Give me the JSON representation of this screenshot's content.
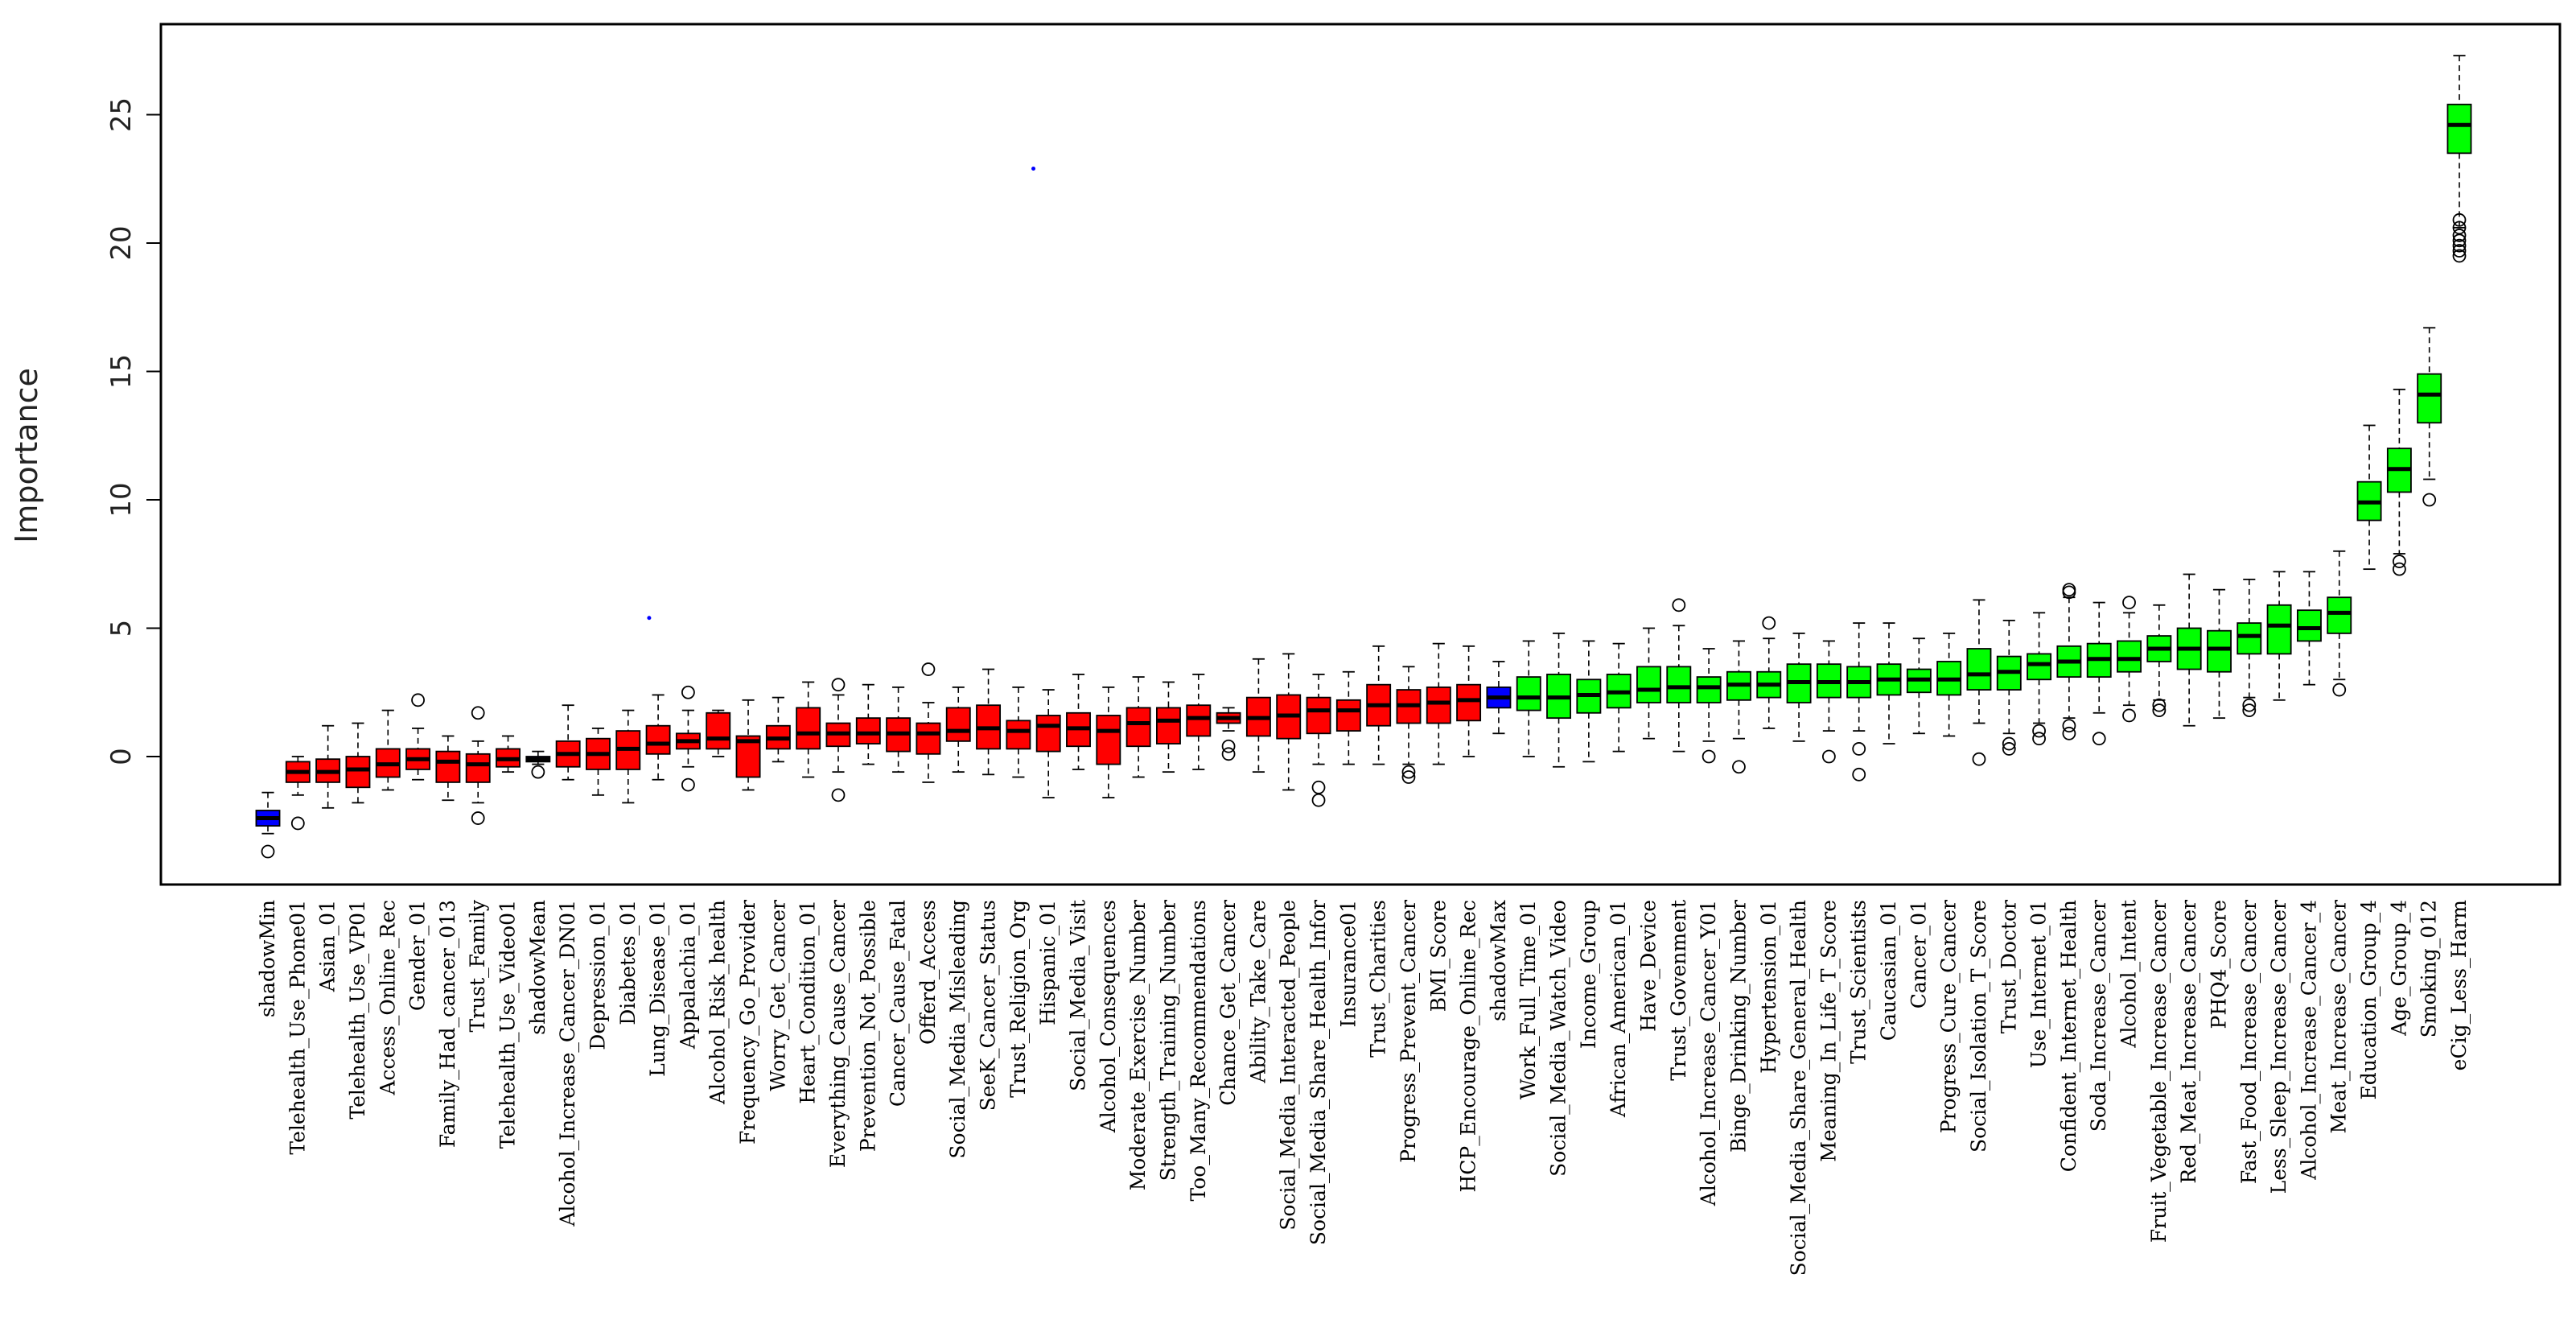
{
  "chart_data": {
    "type": "boxplot",
    "ylabel": "Importance",
    "xlabel": "",
    "ylim": [
      -5,
      28
    ],
    "yticks": [
      0,
      5,
      10,
      15,
      20,
      25
    ],
    "colors": {
      "shadow": "#0000ff",
      "rejected": "#ff0000",
      "confirmed": "#00ff00"
    },
    "boxes": [
      {
        "label": "shadowMin",
        "group": "shadow",
        "min": -3.0,
        "q1": -2.7,
        "median": -2.4,
        "q3": -2.1,
        "max": -1.4,
        "outliers": [
          -3.7
        ]
      },
      {
        "label": "Telehealth_Use_Phone01",
        "group": "rejected",
        "min": -1.5,
        "q1": -1.0,
        "median": -0.6,
        "q3": -0.2,
        "max": 0.0,
        "outliers": [
          -2.6
        ]
      },
      {
        "label": "Asian_01",
        "group": "rejected",
        "min": -2.0,
        "q1": -1.0,
        "median": -0.6,
        "q3": -0.1,
        "max": 1.2,
        "outliers": []
      },
      {
        "label": "Telehealth_Use_VP01",
        "group": "rejected",
        "min": -1.8,
        "q1": -1.2,
        "median": -0.5,
        "q3": 0.0,
        "max": 1.3,
        "outliers": []
      },
      {
        "label": "Access_Online_Rec",
        "group": "rejected",
        "min": -1.3,
        "q1": -0.8,
        "median": -0.3,
        "q3": 0.3,
        "max": 1.8,
        "outliers": []
      },
      {
        "label": "Gender_01",
        "group": "rejected",
        "min": -0.9,
        "q1": -0.5,
        "median": -0.1,
        "q3": 0.3,
        "max": 1.1,
        "outliers": [
          2.2
        ]
      },
      {
        "label": "Family_Had_cancer_013",
        "group": "rejected",
        "min": -1.7,
        "q1": -1.0,
        "median": -0.2,
        "q3": 0.2,
        "max": 0.8,
        "outliers": []
      },
      {
        "label": "Trust_Family",
        "group": "rejected",
        "min": -1.8,
        "q1": -1.0,
        "median": -0.3,
        "q3": 0.1,
        "max": 0.6,
        "outliers": [
          1.7,
          -2.4
        ]
      },
      {
        "label": "Telehealth_Use_Video01",
        "group": "rejected",
        "min": -0.6,
        "q1": -0.4,
        "median": -0.1,
        "q3": 0.3,
        "max": 0.8,
        "outliers": []
      },
      {
        "label": "shadowMean",
        "group": "shadow",
        "min": -0.3,
        "q1": -0.2,
        "median": -0.1,
        "q3": 0.0,
        "max": 0.2,
        "outliers": [
          -0.6
        ]
      },
      {
        "label": "Alcohol_Increase_Cancer_DN01",
        "group": "rejected",
        "min": -0.9,
        "q1": -0.4,
        "median": 0.1,
        "q3": 0.6,
        "max": 2.0,
        "outliers": []
      },
      {
        "label": "Depression_01",
        "group": "rejected",
        "min": -1.5,
        "q1": -0.5,
        "median": 0.1,
        "q3": 0.7,
        "max": 1.1,
        "outliers": []
      },
      {
        "label": "Diabetes_01",
        "group": "rejected",
        "min": -1.8,
        "q1": -0.5,
        "median": 0.3,
        "q3": 1.0,
        "max": 1.8,
        "outliers": []
      },
      {
        "label": "Lung_Disease_01",
        "group": "rejected",
        "min": -0.9,
        "q1": 0.1,
        "median": 0.5,
        "q3": 1.2,
        "max": 2.4,
        "outliers": []
      },
      {
        "label": "Appalachia_01",
        "group": "rejected",
        "min": -0.4,
        "q1": 0.3,
        "median": 0.6,
        "q3": 0.9,
        "max": 1.8,
        "outliers": [
          2.5,
          -1.1
        ]
      },
      {
        "label": "Alcohol_Risk_health",
        "group": "rejected",
        "min": 0.0,
        "q1": 0.3,
        "median": 0.7,
        "q3": 1.7,
        "max": 1.8,
        "outliers": []
      },
      {
        "label": "Frequency_Go_Provider",
        "group": "rejected",
        "min": -1.3,
        "q1": -0.8,
        "median": 0.6,
        "q3": 0.8,
        "max": 2.2,
        "outliers": []
      },
      {
        "label": "Worry_Get_Cancer",
        "group": "rejected",
        "min": -0.2,
        "q1": 0.3,
        "median": 0.7,
        "q3": 1.2,
        "max": 2.3,
        "outliers": []
      },
      {
        "label": "Heart_Condition_01",
        "group": "rejected",
        "min": -0.8,
        "q1": 0.3,
        "median": 0.9,
        "q3": 1.9,
        "max": 2.9,
        "outliers": []
      },
      {
        "label": "Everything_Cause_Cancer",
        "group": "rejected",
        "min": -0.6,
        "q1": 0.4,
        "median": 0.9,
        "q3": 1.3,
        "max": 2.4,
        "outliers": [
          2.8,
          -1.5
        ]
      },
      {
        "label": "Prevention_Not_Possible",
        "group": "rejected",
        "min": -0.3,
        "q1": 0.5,
        "median": 0.9,
        "q3": 1.5,
        "max": 2.8,
        "outliers": []
      },
      {
        "label": "Cancer_Cause_Fatal",
        "group": "rejected",
        "min": -0.6,
        "q1": 0.2,
        "median": 0.9,
        "q3": 1.5,
        "max": 2.7,
        "outliers": []
      },
      {
        "label": "Offerd_Access",
        "group": "rejected",
        "min": -1.0,
        "q1": 0.1,
        "median": 0.9,
        "q3": 1.3,
        "max": 2.1,
        "outliers": [
          3.4
        ]
      },
      {
        "label": "Social_Media_Misleading",
        "group": "rejected",
        "min": -0.6,
        "q1": 0.6,
        "median": 1.0,
        "q3": 1.9,
        "max": 2.7,
        "outliers": []
      },
      {
        "label": "SeeK_Cancer_Status",
        "group": "rejected",
        "min": -0.7,
        "q1": 0.3,
        "median": 1.1,
        "q3": 2.0,
        "max": 3.4,
        "outliers": []
      },
      {
        "label": "Trust_Religion_Org",
        "group": "rejected",
        "min": -0.8,
        "q1": 0.3,
        "median": 1.0,
        "q3": 1.4,
        "max": 2.7,
        "outliers": []
      },
      {
        "label": "Hispanic_01",
        "group": "rejected",
        "min": -1.6,
        "q1": 0.2,
        "median": 1.2,
        "q3": 1.6,
        "max": 2.6,
        "outliers": []
      },
      {
        "label": "Social_Media_Visit",
        "group": "rejected",
        "min": -0.5,
        "q1": 0.4,
        "median": 1.1,
        "q3": 1.7,
        "max": 3.2,
        "outliers": []
      },
      {
        "label": "Alcohol_Consequences",
        "group": "rejected",
        "min": -1.6,
        "q1": -0.3,
        "median": 1.0,
        "q3": 1.6,
        "max": 2.7,
        "outliers": []
      },
      {
        "label": "Moderate_Exercise_Number",
        "group": "rejected",
        "min": -0.8,
        "q1": 0.4,
        "median": 1.3,
        "q3": 1.9,
        "max": 3.1,
        "outliers": []
      },
      {
        "label": "Strength_Training_Number",
        "group": "rejected",
        "min": -0.6,
        "q1": 0.5,
        "median": 1.4,
        "q3": 1.9,
        "max": 2.9,
        "outliers": []
      },
      {
        "label": "Too_Many_Recommendations",
        "group": "rejected",
        "min": -0.5,
        "q1": 0.8,
        "median": 1.5,
        "q3": 2.0,
        "max": 3.2,
        "outliers": []
      },
      {
        "label": "Chance_Get_Cancer",
        "group": "rejected",
        "min": 1.0,
        "q1": 1.3,
        "median": 1.5,
        "q3": 1.7,
        "max": 1.9,
        "outliers": [
          0.4,
          0.1
        ]
      },
      {
        "label": "Ability_Take_Care",
        "group": "rejected",
        "min": -0.6,
        "q1": 0.8,
        "median": 1.5,
        "q3": 2.3,
        "max": 3.8,
        "outliers": []
      },
      {
        "label": "Social_Media_Interacted_People",
        "group": "rejected",
        "min": -1.3,
        "q1": 0.7,
        "median": 1.6,
        "q3": 2.4,
        "max": 4.0,
        "outliers": []
      },
      {
        "label": "Social_Media_Share_Health_Infor",
        "group": "rejected",
        "min": -0.3,
        "q1": 0.9,
        "median": 1.8,
        "q3": 2.3,
        "max": 3.2,
        "outliers": [
          -1.2,
          -1.7
        ]
      },
      {
        "label": "Insurance01",
        "group": "rejected",
        "min": -0.3,
        "q1": 1.0,
        "median": 1.8,
        "q3": 2.2,
        "max": 3.3,
        "outliers": []
      },
      {
        "label": "Trust_Charities",
        "group": "rejected",
        "min": -0.3,
        "q1": 1.2,
        "median": 2.0,
        "q3": 2.8,
        "max": 4.3,
        "outliers": []
      },
      {
        "label": "Progress_Prevent_Cancer",
        "group": "rejected",
        "min": -0.3,
        "q1": 1.3,
        "median": 2.0,
        "q3": 2.6,
        "max": 3.5,
        "outliers": [
          -0.6,
          -0.8
        ]
      },
      {
        "label": "BMI_Score",
        "group": "rejected",
        "min": -0.3,
        "q1": 1.3,
        "median": 2.1,
        "q3": 2.7,
        "max": 4.4,
        "outliers": []
      },
      {
        "label": "HCP_Encourage_Online_Rec",
        "group": "rejected",
        "min": 0.0,
        "q1": 1.4,
        "median": 2.2,
        "q3": 2.8,
        "max": 4.3,
        "outliers": []
      },
      {
        "label": "shadowMax",
        "group": "shadow",
        "min": 0.9,
        "q1": 1.9,
        "median": 2.3,
        "q3": 2.7,
        "max": 3.7,
        "outliers": []
      },
      {
        "label": "Work_Full_Time_01",
        "group": "confirmed",
        "min": 0.0,
        "q1": 1.8,
        "median": 2.3,
        "q3": 3.1,
        "max": 4.5,
        "outliers": []
      },
      {
        "label": "Social_Media_Watch_Video",
        "group": "confirmed",
        "min": -0.4,
        "q1": 1.5,
        "median": 2.3,
        "q3": 3.2,
        "max": 4.8,
        "outliers": []
      },
      {
        "label": "Income_Group",
        "group": "confirmed",
        "min": -0.2,
        "q1": 1.7,
        "median": 2.4,
        "q3": 3.0,
        "max": 4.5,
        "outliers": []
      },
      {
        "label": "African_American_01",
        "group": "confirmed",
        "min": 0.2,
        "q1": 1.9,
        "median": 2.5,
        "q3": 3.2,
        "max": 4.4,
        "outliers": []
      },
      {
        "label": "Have_Device",
        "group": "confirmed",
        "min": 0.7,
        "q1": 2.1,
        "median": 2.6,
        "q3": 3.5,
        "max": 5.0,
        "outliers": []
      },
      {
        "label": "Trust_Govenment",
        "group": "confirmed",
        "min": 0.2,
        "q1": 2.1,
        "median": 2.7,
        "q3": 3.5,
        "max": 5.1,
        "outliers": [
          5.9
        ]
      },
      {
        "label": "Alcohol_Increase_Cancer_Y01",
        "group": "confirmed",
        "min": 0.6,
        "q1": 2.1,
        "median": 2.7,
        "q3": 3.1,
        "max": 4.2,
        "outliers": [
          0.0
        ]
      },
      {
        "label": "Binge_Drinking_Number",
        "group": "confirmed",
        "min": 0.7,
        "q1": 2.2,
        "median": 2.8,
        "q3": 3.3,
        "max": 4.5,
        "outliers": [
          -0.4
        ]
      },
      {
        "label": "Hypertension_01",
        "group": "confirmed",
        "min": 1.1,
        "q1": 2.3,
        "median": 2.8,
        "q3": 3.3,
        "max": 4.6,
        "outliers": [
          5.2
        ]
      },
      {
        "label": "Social_Media_Share_General_Health",
        "group": "confirmed",
        "min": 0.6,
        "q1": 2.1,
        "median": 2.9,
        "q3": 3.6,
        "max": 4.8,
        "outliers": []
      },
      {
        "label": "Meaning_In_Life_T_Score",
        "group": "confirmed",
        "min": 1.0,
        "q1": 2.3,
        "median": 2.9,
        "q3": 3.6,
        "max": 4.5,
        "outliers": [
          0.0
        ]
      },
      {
        "label": "Trust_Scientists",
        "group": "confirmed",
        "min": 1.0,
        "q1": 2.3,
        "median": 2.9,
        "q3": 3.5,
        "max": 5.2,
        "outliers": [
          0.3,
          -0.7
        ]
      },
      {
        "label": "Caucasian_01",
        "group": "confirmed",
        "min": 0.5,
        "q1": 2.4,
        "median": 3.0,
        "q3": 3.6,
        "max": 5.2,
        "outliers": []
      },
      {
        "label": "Cancer_01",
        "group": "confirmed",
        "min": 0.9,
        "q1": 2.5,
        "median": 3.0,
        "q3": 3.4,
        "max": 4.6,
        "outliers": []
      },
      {
        "label": "Progress_Cure_Cancer",
        "group": "confirmed",
        "min": 0.8,
        "q1": 2.4,
        "median": 3.0,
        "q3": 3.7,
        "max": 4.8,
        "outliers": []
      },
      {
        "label": "Social_Isolation_T_Score",
        "group": "confirmed",
        "min": 1.3,
        "q1": 2.6,
        "median": 3.2,
        "q3": 4.2,
        "max": 6.1,
        "outliers": [
          -0.1
        ]
      },
      {
        "label": "Trust_Doctor",
        "group": "confirmed",
        "min": 0.9,
        "q1": 2.6,
        "median": 3.3,
        "q3": 3.9,
        "max": 5.3,
        "outliers": [
          0.5,
          0.3
        ]
      },
      {
        "label": "Use_Internet_01",
        "group": "confirmed",
        "min": 1.3,
        "q1": 3.0,
        "median": 3.6,
        "q3": 4.0,
        "max": 5.6,
        "outliers": [
          1.0,
          0.7
        ]
      },
      {
        "label": "Confident_Internet_Health",
        "group": "confirmed",
        "min": 1.5,
        "q1": 3.1,
        "median": 3.7,
        "q3": 4.3,
        "max": 6.2,
        "outliers": [
          6.5,
          6.4,
          1.2,
          0.9
        ]
      },
      {
        "label": "Soda_Increase_Cancer",
        "group": "confirmed",
        "min": 1.7,
        "q1": 3.1,
        "median": 3.8,
        "q3": 4.4,
        "max": 6.0,
        "outliers": [
          0.7
        ]
      },
      {
        "label": "Alcohol_Intent",
        "group": "confirmed",
        "min": 2.0,
        "q1": 3.3,
        "median": 3.8,
        "q3": 4.5,
        "max": 5.6,
        "outliers": [
          6.0,
          1.6
        ]
      },
      {
        "label": "Fruit_Vegetable_Increase_Cancer",
        "group": "confirmed",
        "min": 2.2,
        "q1": 3.7,
        "median": 4.2,
        "q3": 4.7,
        "max": 5.9,
        "outliers": [
          2.0,
          1.8
        ]
      },
      {
        "label": "Red_Meat_Increase_Cancer",
        "group": "confirmed",
        "min": 1.2,
        "q1": 3.4,
        "median": 4.2,
        "q3": 5.0,
        "max": 7.1,
        "outliers": []
      },
      {
        "label": "PHQ4_Score",
        "group": "confirmed",
        "min": 1.5,
        "q1": 3.3,
        "median": 4.2,
        "q3": 4.9,
        "max": 6.5,
        "outliers": []
      },
      {
        "label": "Fast_Food_Increase_Cancer",
        "group": "confirmed",
        "min": 2.3,
        "q1": 4.0,
        "median": 4.7,
        "q3": 5.2,
        "max": 6.9,
        "outliers": [
          2.0,
          1.8
        ]
      },
      {
        "label": "Less_Sleep_Increase_Cancer",
        "group": "confirmed",
        "min": 2.2,
        "q1": 4.0,
        "median": 5.1,
        "q3": 5.9,
        "max": 7.2,
        "outliers": []
      },
      {
        "label": "Alcohol_Increase_Cancer_4",
        "group": "confirmed",
        "min": 2.8,
        "q1": 4.5,
        "median": 5.0,
        "q3": 5.7,
        "max": 7.2,
        "outliers": []
      },
      {
        "label": "Meat_Increase_Cancer",
        "group": "confirmed",
        "min": 3.0,
        "q1": 4.8,
        "median": 5.6,
        "q3": 6.2,
        "max": 8.0,
        "outliers": [
          2.6
        ]
      },
      {
        "label": "Education_Group_4",
        "group": "confirmed",
        "min": 7.3,
        "q1": 9.2,
        "median": 9.9,
        "q3": 10.7,
        "max": 12.9,
        "outliers": []
      },
      {
        "label": "Age_Group_4",
        "group": "confirmed",
        "min": 7.9,
        "q1": 10.3,
        "median": 11.2,
        "q3": 12.0,
        "max": 14.3,
        "outliers": [
          7.6,
          7.3
        ]
      },
      {
        "label": "Smoking_012",
        "group": "confirmed",
        "min": 10.8,
        "q1": 13.0,
        "median": 14.1,
        "q3": 14.9,
        "max": 16.7,
        "outliers": [
          10.0
        ]
      },
      {
        "label": "eCig_Less_Harm",
        "group": "confirmed",
        "min": 20.6,
        "q1": 23.5,
        "median": 24.6,
        "q3": 25.4,
        "max": 27.3,
        "outliers": [
          20.9,
          20.6,
          20.3,
          20.1,
          19.9,
          19.7,
          19.5
        ]
      }
    ],
    "stray_points": [
      {
        "index": 12.7,
        "value": 5.4
      },
      {
        "index": 25.5,
        "value": 22.9
      }
    ]
  }
}
